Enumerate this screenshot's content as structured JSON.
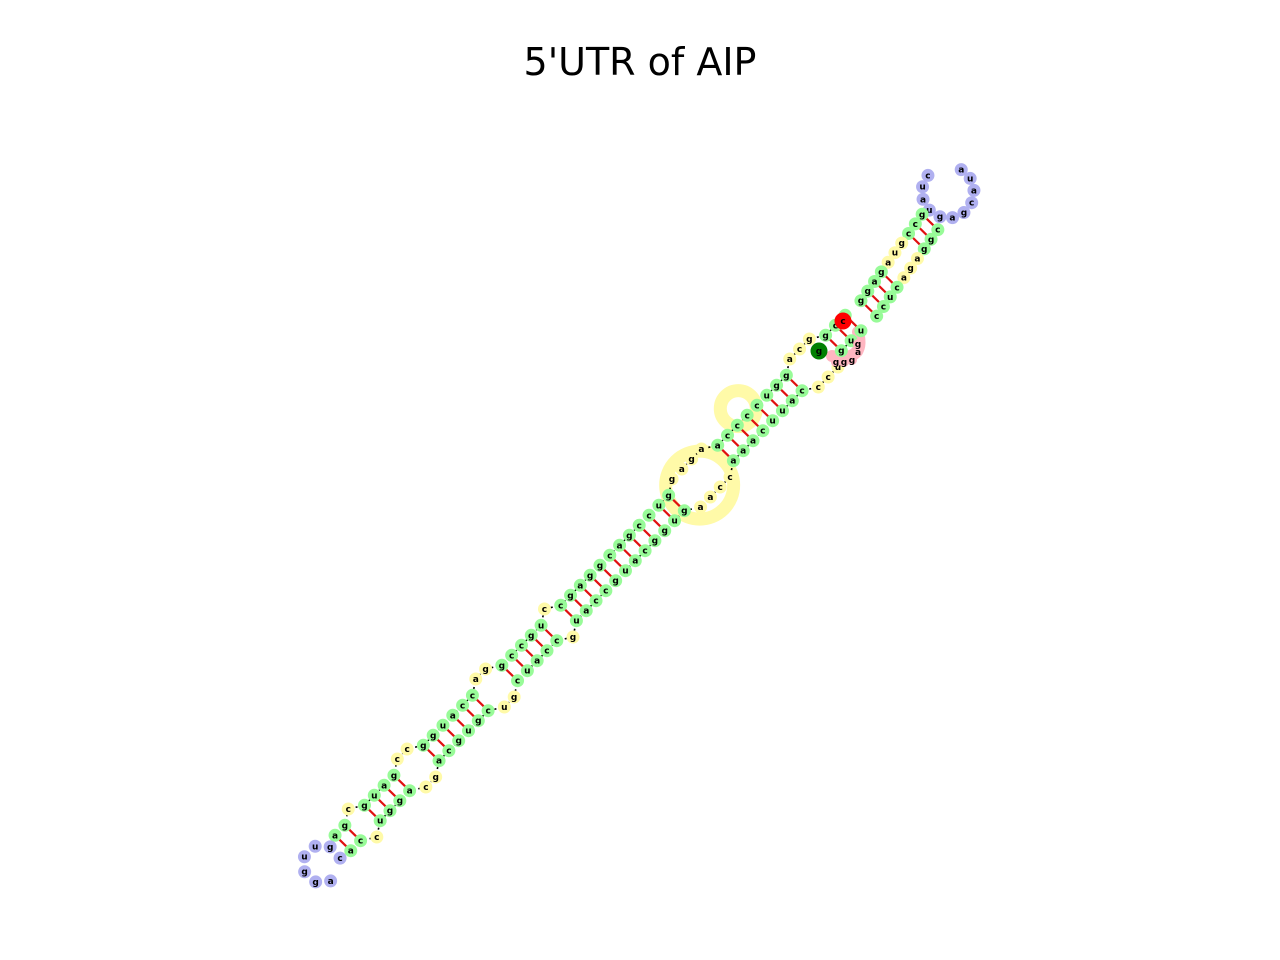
{
  "title": "5'UTR of AIP",
  "colors": {
    "stem": "#98fb98",
    "hairpin": "#b0b0f0",
    "internal": "#fffaa8",
    "exterior": "#ffb6c1",
    "pair_line": "#e01010",
    "backbone": "#000000",
    "start_marker": "#008000",
    "end_marker": "#ff0000"
  },
  "legend_markers": [
    "start-marker-g",
    "end-marker-c"
  ],
  "diagram": {
    "type": "rna-secondary-structure",
    "structure_element_types": [
      "stem",
      "hairpin-loop",
      "internal-loop",
      "exterior-loop"
    ],
    "five_prime_label": "g",
    "three_prime_label": "c",
    "exterior_tail": "gggag",
    "top_hairpin_loop": [
      "c",
      "u",
      "a",
      "u",
      "g",
      "a",
      "g",
      "c",
      "a",
      "u",
      "a"
    ],
    "bottom_hairpin_loop": [
      "a",
      "g",
      "g",
      "u",
      "u",
      "g",
      "c"
    ],
    "strand_a": [
      "u",
      "u",
      "g",
      "u",
      "c",
      "c",
      "c",
      "a",
      "u",
      "u",
      "c",
      "a",
      "a",
      "a",
      "c",
      "c",
      "a",
      "a",
      "g",
      "u",
      "g",
      "g",
      "c",
      "a",
      "u",
      "g",
      "c",
      "c",
      "a",
      "u",
      "g",
      "c",
      "c",
      "a",
      "u",
      "c",
      "g",
      "u",
      "c",
      "g",
      "u",
      "g",
      "c",
      "a",
      "g",
      "c",
      "a",
      "g",
      "g",
      "u",
      "c",
      "c",
      "a"
    ],
    "strand_b": [
      "c",
      "c",
      "g",
      "g",
      "c",
      "a",
      "g",
      "g",
      "u",
      "c",
      "c",
      "c",
      "c",
      "a",
      "a",
      "g",
      "a",
      "g",
      "g",
      "u",
      "c",
      "c",
      "g",
      "a",
      "c",
      "g",
      "g",
      "a",
      "g",
      "c",
      "c",
      "u",
      "g",
      "c",
      "c",
      "g",
      "g",
      "a",
      "c",
      "c",
      "a",
      "u",
      "g",
      "g",
      "c",
      "c",
      "g",
      "a",
      "u",
      "g",
      "c",
      "g",
      "a"
    ]
  }
}
